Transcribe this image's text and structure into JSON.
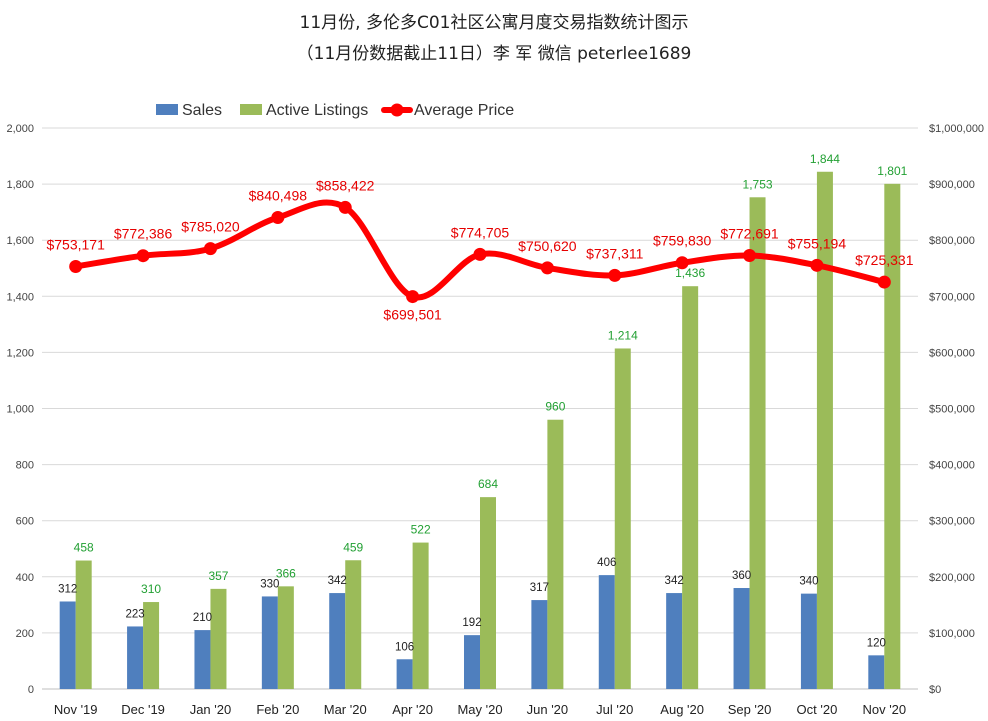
{
  "chart_data": {
    "type": "bar",
    "title": "11月份, 多伦多C01社区公寓月度交易指数统计图示",
    "subtitle": "（11月份数据截止11日）李 军  微信  peterlee1689",
    "categories": [
      "Nov '19",
      "Dec '19",
      "Jan '20",
      "Feb '20",
      "Mar '20",
      "Apr '20",
      "May '20",
      "Jun '20",
      "Jul '20",
      "Aug '20",
      "Sep '20",
      "Oct '20",
      "Nov '20"
    ],
    "series": [
      {
        "name": "Sales",
        "kind": "bar",
        "axis": "left",
        "color": "#4F7FBE",
        "values": [
          312,
          223,
          210,
          330,
          342,
          106,
          192,
          317,
          406,
          342,
          360,
          340,
          120
        ],
        "labels": [
          "312",
          "223",
          "210",
          "330",
          "342",
          "106",
          "192",
          "317",
          "406",
          "342",
          "360",
          "340",
          "120"
        ]
      },
      {
        "name": "Active Listings",
        "kind": "bar",
        "axis": "left",
        "color": "#9BBB59",
        "values": [
          458,
          310,
          357,
          366,
          459,
          522,
          684,
          960,
          1214,
          1436,
          1753,
          1844,
          1801
        ],
        "labels": [
          "458",
          "310",
          "357",
          "366",
          "459",
          "522",
          "684",
          "960",
          "1,214",
          "1,436",
          "1,753",
          "1,844",
          "1,801"
        ]
      },
      {
        "name": "Average Price",
        "kind": "line",
        "axis": "right",
        "color": "#FF0000",
        "values": [
          753171,
          772386,
          785020,
          840498,
          858422,
          699501,
          774705,
          750620,
          737311,
          759830,
          772691,
          755194,
          725331
        ],
        "labels": [
          "$753,171",
          "$772,386",
          "$785,020",
          "$840,498",
          "$858,422",
          "$699,501",
          "$774,705",
          "$750,620",
          "$737,311",
          "$759,830",
          "$772,691",
          "$755,194",
          "$725,331"
        ]
      }
    ],
    "y_left": {
      "min": 0,
      "max": 2000,
      "ticks": [
        "0",
        "200",
        "400",
        "600",
        "800",
        "1,000",
        "1,200",
        "1,400",
        "1,600",
        "1,800",
        "2,000"
      ]
    },
    "y_right": {
      "min": 0,
      "max": 1000000,
      "ticks": [
        "$0",
        "$100,000",
        "$200,000",
        "$300,000",
        "$400,000",
        "$500,000",
        "$600,000",
        "$700,000",
        "$800,000",
        "$900,000",
        "$1,000,000"
      ]
    },
    "legend": {
      "position": "top",
      "items": [
        "Sales",
        "Active Listings",
        "Average Price"
      ]
    },
    "grid": true
  }
}
